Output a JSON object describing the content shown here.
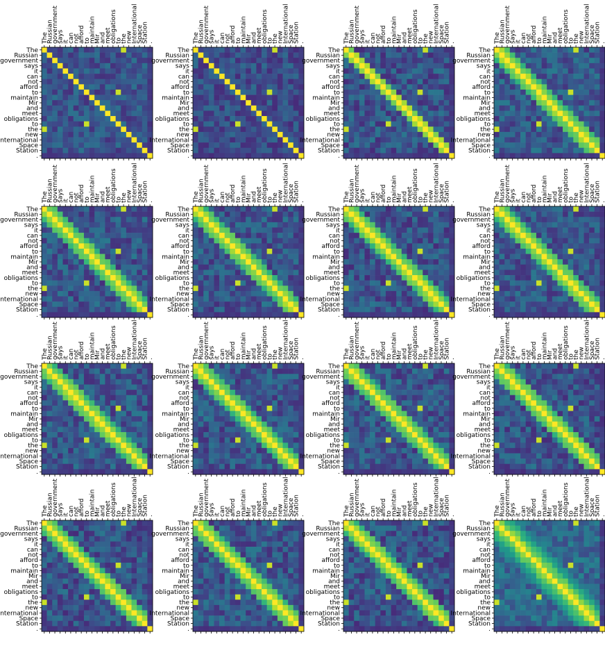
{
  "chart_data": {
    "type": "heatmap",
    "layout": {
      "rows": 4,
      "cols": 4
    },
    "tokens": [
      "The",
      "Russian",
      "government",
      "says",
      "it",
      "can",
      "not",
      "afford",
      "to",
      "maintain",
      "Mir",
      "and",
      "meet",
      "obligations",
      "to",
      "the",
      "new",
      "International",
      "Space",
      "Station",
      "."
    ],
    "colormap": [
      "#440154",
      "#482878",
      "#3e4989",
      "#31688e",
      "#26828e",
      "#1f9e89",
      "#35b779",
      "#6ece58",
      "#b5de2b",
      "#fde725"
    ],
    "value_range": [
      0,
      1
    ],
    "panels": [
      {
        "seed": 11,
        "diag_width": 0,
        "base": 0.26,
        "noise": 0.12
      },
      {
        "seed": 23,
        "diag_width": 0,
        "base": 0.24,
        "noise": 0.12
      },
      {
        "seed": 37,
        "diag_width": 1,
        "base": 0.26,
        "noise": 0.14
      },
      {
        "seed": 41,
        "diag_width": 2,
        "base": 0.28,
        "noise": 0.14
      },
      {
        "seed": 53,
        "diag_width": 2,
        "base": 0.27,
        "noise": 0.14
      },
      {
        "seed": 67,
        "diag_width": 2,
        "base": 0.27,
        "noise": 0.14
      },
      {
        "seed": 71,
        "diag_width": 2,
        "base": 0.26,
        "noise": 0.14
      },
      {
        "seed": 83,
        "diag_width": 2,
        "base": 0.27,
        "noise": 0.13
      },
      {
        "seed": 97,
        "diag_width": 2,
        "base": 0.27,
        "noise": 0.14
      },
      {
        "seed": 101,
        "diag_width": 2,
        "base": 0.27,
        "noise": 0.14
      },
      {
        "seed": 113,
        "diag_width": 2,
        "base": 0.27,
        "noise": 0.14
      },
      {
        "seed": 127,
        "diag_width": 2,
        "base": 0.26,
        "noise": 0.14
      },
      {
        "seed": 131,
        "diag_width": 2,
        "base": 0.26,
        "noise": 0.14
      },
      {
        "seed": 149,
        "diag_width": 2,
        "base": 0.27,
        "noise": 0.14
      },
      {
        "seed": 151,
        "diag_width": 2,
        "base": 0.26,
        "noise": 0.14
      },
      {
        "seed": 163,
        "diag_width": 4,
        "base": 0.34,
        "noise": 0.12
      }
    ]
  }
}
